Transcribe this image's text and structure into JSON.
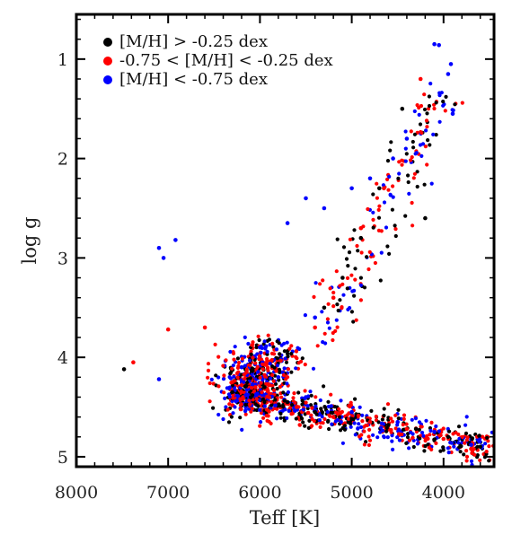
{
  "chart_data": {
    "type": "scatter",
    "title": "",
    "xlabel": "Teff [K]",
    "ylabel": "log g",
    "xlim": [
      8000,
      3450
    ],
    "ylim": [
      0.55,
      5.1
    ],
    "x_reversed": true,
    "y_reversed": true,
    "x_ticks": [
      8000,
      7000,
      6000,
      5000,
      4000
    ],
    "y_ticks": [
      1,
      2,
      3,
      4,
      5
    ],
    "x_tick_labels": [
      "8000",
      "7000",
      "6000",
      "5000",
      "4000"
    ],
    "y_tick_labels": [
      "1",
      "2",
      "3",
      "4",
      "5"
    ],
    "grid": false,
    "legend_position": "top-left",
    "series": [
      {
        "name": "[M/H] > -0.25 dex",
        "color": "#000000",
        "density": "moderate",
        "points": [
          [
            7480,
            4.12
          ],
          [
            6300,
            4.35
          ],
          [
            6100,
            4.4
          ],
          [
            5950,
            4.3
          ],
          [
            5700,
            4.45
          ],
          [
            5400,
            4.55
          ],
          [
            5000,
            4.62
          ],
          [
            4600,
            4.68
          ],
          [
            4300,
            4.72
          ],
          [
            3950,
            4.8
          ],
          [
            3600,
            4.9
          ],
          [
            4450,
            1.5
          ],
          [
            4200,
            2.6
          ],
          [
            4700,
            2.3
          ],
          [
            4900,
            2.8
          ],
          [
            5100,
            3.2
          ],
          [
            5300,
            3.5
          ]
        ]
      },
      {
        "name": "-0.75 < [M/H] < -0.25 dex",
        "color": "#ff0000",
        "density": "dense",
        "points": [
          [
            7380,
            4.05
          ],
          [
            7000,
            3.72
          ],
          [
            6600,
            3.7
          ],
          [
            4250,
            1.2
          ],
          [
            6300,
            4.25
          ],
          [
            6200,
            4.35
          ],
          [
            6050,
            4.3
          ],
          [
            5900,
            4.4
          ],
          [
            5600,
            4.5
          ],
          [
            5200,
            4.6
          ],
          [
            4800,
            4.65
          ],
          [
            4400,
            4.72
          ],
          [
            4000,
            4.82
          ],
          [
            3700,
            4.92
          ],
          [
            4650,
            2.3
          ],
          [
            4900,
            2.7
          ],
          [
            5200,
            3.4
          ],
          [
            5400,
            3.7
          ]
        ]
      },
      {
        "name": "[M/H] < -0.75 dex",
        "color": "#0000ff",
        "density": "moderate",
        "points": [
          [
            7100,
            2.9
          ],
          [
            7050,
            3.0
          ],
          [
            6920,
            2.82
          ],
          [
            7100,
            4.22
          ],
          [
            4100,
            0.85
          ],
          [
            4050,
            0.86
          ],
          [
            3950,
            1.15
          ],
          [
            3920,
            1.05
          ],
          [
            3900,
            1.55
          ],
          [
            4400,
            1.8
          ],
          [
            4550,
            2.0
          ],
          [
            4800,
            2.2
          ],
          [
            5000,
            2.3
          ],
          [
            5300,
            2.5
          ],
          [
            5700,
            2.65
          ],
          [
            5400,
            3.6
          ],
          [
            6200,
            4.1
          ],
          [
            6000,
            3.9
          ],
          [
            5800,
            4.2
          ],
          [
            5500,
            4.4
          ],
          [
            5000,
            4.55
          ],
          [
            4500,
            4.65
          ],
          [
            4100,
            4.75
          ],
          [
            3700,
            4.88
          ],
          [
            5500,
            2.4
          ]
        ]
      }
    ]
  }
}
